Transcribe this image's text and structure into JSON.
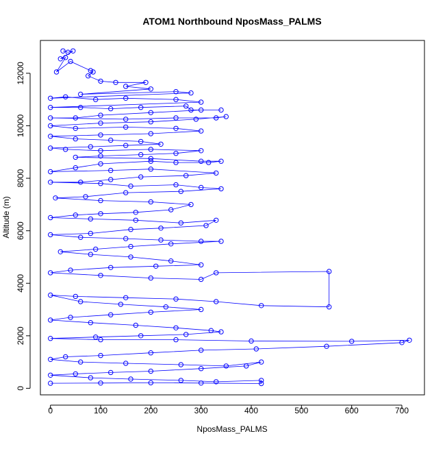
{
  "chart_data": {
    "type": "scatter",
    "title": "ATOM1 Northbound NposMass_PALMS",
    "xlabel": "NposMass_PALMS",
    "ylabel": "Altitude (m)",
    "xlim": [
      -20,
      745
    ],
    "ylim": [
      -250,
      13250
    ],
    "xticks": [
      "0",
      "100",
      "200",
      "300",
      "400",
      "500",
      "600",
      "700"
    ],
    "yticks": [
      "0",
      "2000",
      "4000",
      "6000",
      "8000",
      "10000",
      "12000"
    ],
    "grid": false,
    "legend": "none",
    "series_color": "#0000ff",
    "connected_points": true,
    "series": [
      {
        "values": [
          [
            25,
            12850
          ],
          [
            35,
            12800
          ],
          [
            45,
            12850
          ],
          [
            20,
            12550
          ],
          [
            30,
            12600
          ],
          [
            12,
            12050
          ],
          [
            40,
            12450
          ],
          [
            80,
            12100
          ],
          [
            85,
            12050
          ],
          [
            75,
            11900
          ],
          [
            100,
            11700
          ],
          [
            130,
            11650
          ],
          [
            190,
            11650
          ],
          [
            150,
            11500
          ],
          [
            200,
            11400
          ],
          [
            60,
            11200
          ],
          [
            250,
            11300
          ],
          [
            280,
            11250
          ],
          [
            0,
            11050
          ],
          [
            30,
            11100
          ],
          [
            90,
            11000
          ],
          [
            150,
            11050
          ],
          [
            250,
            11000
          ],
          [
            300,
            10900
          ],
          [
            0,
            10700
          ],
          [
            60,
            10700
          ],
          [
            120,
            10650
          ],
          [
            180,
            10700
          ],
          [
            270,
            10750
          ],
          [
            280,
            10600
          ],
          [
            340,
            10600
          ],
          [
            300,
            10600
          ],
          [
            200,
            10500
          ],
          [
            100,
            10400
          ],
          [
            50,
            10300
          ],
          [
            0,
            10300
          ],
          [
            150,
            10250
          ],
          [
            250,
            10300
          ],
          [
            330,
            10300
          ],
          [
            350,
            10350
          ],
          [
            290,
            10250
          ],
          [
            200,
            10150
          ],
          [
            100,
            10100
          ],
          [
            0,
            10000
          ],
          [
            50,
            9900
          ],
          [
            150,
            9950
          ],
          [
            250,
            9900
          ],
          [
            300,
            9800
          ],
          [
            200,
            9700
          ],
          [
            100,
            9650
          ],
          [
            0,
            9600
          ],
          [
            50,
            9500
          ],
          [
            120,
            9450
          ],
          [
            180,
            9400
          ],
          [
            220,
            9300
          ],
          [
            150,
            9250
          ],
          [
            80,
            9200
          ],
          [
            0,
            9150
          ],
          [
            30,
            9100
          ],
          [
            100,
            9050
          ],
          [
            200,
            9100
          ],
          [
            300,
            9050
          ],
          [
            250,
            8950
          ],
          [
            180,
            8900
          ],
          [
            100,
            8850
          ],
          [
            50,
            8800
          ],
          [
            200,
            8750
          ],
          [
            300,
            8650
          ],
          [
            340,
            8650
          ],
          [
            315,
            8600
          ],
          [
            250,
            8600
          ],
          [
            200,
            8650
          ],
          [
            100,
            8550
          ],
          [
            50,
            8400
          ],
          [
            0,
            8250
          ],
          [
            120,
            8300
          ],
          [
            200,
            8350
          ],
          [
            330,
            8200
          ],
          [
            270,
            8100
          ],
          [
            180,
            8050
          ],
          [
            120,
            7950
          ],
          [
            60,
            7850
          ],
          [
            0,
            7850
          ],
          [
            100,
            7800
          ],
          [
            160,
            7700
          ],
          [
            250,
            7750
          ],
          [
            300,
            7650
          ],
          [
            340,
            7600
          ],
          [
            260,
            7500
          ],
          [
            150,
            7450
          ],
          [
            70,
            7300
          ],
          [
            10,
            7250
          ],
          [
            100,
            7150
          ],
          [
            200,
            7100
          ],
          [
            280,
            7000
          ],
          [
            240,
            6800
          ],
          [
            170,
            6700
          ],
          [
            100,
            6650
          ],
          [
            50,
            6600
          ],
          [
            0,
            6500
          ],
          [
            80,
            6450
          ],
          [
            170,
            6400
          ],
          [
            260,
            6300
          ],
          [
            330,
            6400
          ],
          [
            310,
            6200
          ],
          [
            220,
            6100
          ],
          [
            160,
            6050
          ],
          [
            80,
            5900
          ],
          [
            0,
            5850
          ],
          [
            60,
            5750
          ],
          [
            150,
            5700
          ],
          [
            220,
            5650
          ],
          [
            300,
            5600
          ],
          [
            340,
            5600
          ],
          [
            240,
            5500
          ],
          [
            160,
            5400
          ],
          [
            90,
            5300
          ],
          [
            20,
            5200
          ],
          [
            80,
            5100
          ],
          [
            160,
            5000
          ],
          [
            240,
            4850
          ],
          [
            300,
            4700
          ],
          [
            210,
            4650
          ],
          [
            120,
            4600
          ],
          [
            40,
            4500
          ],
          [
            0,
            4400
          ],
          [
            100,
            4300
          ],
          [
            200,
            4200
          ],
          [
            300,
            4150
          ],
          [
            330,
            4400
          ],
          [
            555,
            4450
          ],
          [
            555,
            3100
          ],
          [
            420,
            3150
          ],
          [
            330,
            3300
          ],
          [
            250,
            3400
          ],
          [
            150,
            3450
          ],
          [
            50,
            3500
          ],
          [
            0,
            3550
          ],
          [
            60,
            3300
          ],
          [
            140,
            3200
          ],
          [
            230,
            3100
          ],
          [
            300,
            3000
          ],
          [
            200,
            2900
          ],
          [
            120,
            2800
          ],
          [
            40,
            2700
          ],
          [
            0,
            2600
          ],
          [
            80,
            2500
          ],
          [
            170,
            2400
          ],
          [
            250,
            2300
          ],
          [
            320,
            2200
          ],
          [
            340,
            2150
          ],
          [
            270,
            2050
          ],
          [
            180,
            2000
          ],
          [
            90,
            1950
          ],
          [
            0,
            1900
          ],
          [
            100,
            1850
          ],
          [
            250,
            1850
          ],
          [
            400,
            1800
          ],
          [
            600,
            1790
          ],
          [
            715,
            1830
          ],
          [
            700,
            1740
          ],
          [
            550,
            1600
          ],
          [
            410,
            1500
          ],
          [
            300,
            1450
          ],
          [
            200,
            1350
          ],
          [
            100,
            1250
          ],
          [
            30,
            1200
          ],
          [
            0,
            1100
          ],
          [
            60,
            1000
          ],
          [
            150,
            950
          ],
          [
            260,
            900
          ],
          [
            350,
            850
          ],
          [
            420,
            1000
          ],
          [
            390,
            850
          ],
          [
            300,
            750
          ],
          [
            200,
            650
          ],
          [
            120,
            600
          ],
          [
            50,
            550
          ],
          [
            0,
            500
          ],
          [
            80,
            400
          ],
          [
            160,
            350
          ],
          [
            260,
            300
          ],
          [
            330,
            250
          ],
          [
            420,
            300
          ],
          [
            420,
            180
          ],
          [
            300,
            200
          ],
          [
            200,
            210
          ],
          [
            100,
            200
          ],
          [
            0,
            190
          ]
        ]
      }
    ]
  }
}
